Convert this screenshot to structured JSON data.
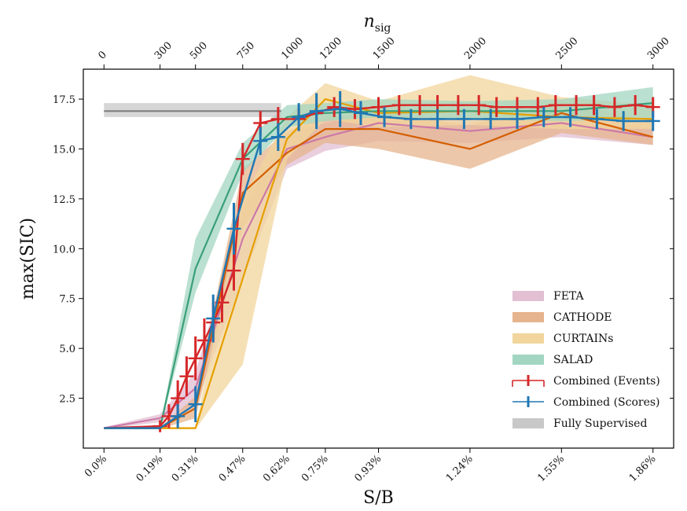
{
  "chart_data": {
    "type": "line",
    "xlabel": "S/B",
    "ylabel": "max(SIC)",
    "top_xlabel_main": "n",
    "top_xlabel_sub": "sig",
    "xlim": [
      -0.07,
      1.93
    ],
    "ylim": [
      0.0,
      19.0
    ],
    "x_ticks": [
      0.0,
      0.19,
      0.31,
      0.47,
      0.62,
      0.75,
      0.93,
      1.24,
      1.55,
      1.86
    ],
    "x_tick_labels": [
      "0.0%",
      "0.19%",
      "0.31%",
      "0.47%",
      "0.62%",
      "0.75%",
      "0.93%",
      "1.24%",
      "1.55%",
      "1.86%"
    ],
    "top_ticks": [
      0,
      300,
      500,
      750,
      1000,
      1200,
      1500,
      2000,
      2500,
      3000
    ],
    "top_tick_labels": [
      "0",
      "300",
      "500",
      "750",
      "1000",
      "1200",
      "1500",
      "2000",
      "2500",
      "3000"
    ],
    "y_ticks": [
      2.5,
      5.0,
      7.5,
      10.0,
      12.5,
      15.0,
      17.5
    ],
    "y_tick_labels": [
      "2.5",
      "5.0",
      "7.5",
      "10.0",
      "12.5",
      "15.0",
      "17.5"
    ],
    "legend_position": "lower-right",
    "series": [
      {
        "name": "FETA",
        "color": "#cc79a7",
        "band_color": "#e2bfd3",
        "x": [
          0.0,
          0.19,
          0.31,
          0.47,
          0.62,
          0.75,
          0.93,
          1.24,
          1.55,
          1.86
        ],
        "values": [
          1.0,
          1.5,
          3.0,
          10.5,
          15.0,
          15.6,
          16.3,
          15.9,
          16.3,
          15.6
        ],
        "lower": [
          0.95,
          1.3,
          2.2,
          8.5,
          14.0,
          14.9,
          15.4,
          15.3,
          15.6,
          15.2
        ],
        "upper": [
          1.05,
          1.7,
          3.8,
          12.0,
          15.8,
          16.3,
          16.9,
          16.4,
          16.9,
          16.0
        ]
      },
      {
        "name": "CATHODE",
        "color": "#d55e00",
        "band_color": "#e6b48e",
        "x": [
          0.0,
          0.19,
          0.31,
          0.47,
          0.62,
          0.75,
          0.93,
          1.24,
          1.55,
          1.86
        ],
        "values": [
          1.0,
          1.0,
          2.0,
          12.8,
          14.8,
          16.0,
          16.0,
          15.0,
          16.8,
          15.6
        ],
        "lower": [
          0.95,
          0.95,
          1.5,
          11.0,
          14.2,
          15.3,
          15.0,
          14.0,
          15.8,
          15.2
        ],
        "upper": [
          1.05,
          1.05,
          2.6,
          14.0,
          15.9,
          16.6,
          16.8,
          16.2,
          17.4,
          16.3
        ]
      },
      {
        "name": "CURTAINs",
        "color": "#e69f00",
        "band_color": "#f1d59c",
        "x": [
          0.0,
          0.19,
          0.31,
          0.47,
          0.62,
          0.75,
          0.93,
          1.24,
          1.55,
          1.86
        ],
        "values": [
          1.0,
          1.0,
          1.0,
          8.5,
          15.5,
          17.5,
          16.8,
          16.9,
          16.6,
          16.5
        ],
        "lower": [
          0.95,
          0.95,
          0.95,
          4.2,
          14.5,
          16.5,
          16.1,
          16.2,
          16.0,
          16.0
        ],
        "upper": [
          1.05,
          1.05,
          1.05,
          12.5,
          16.6,
          18.3,
          17.4,
          18.7,
          17.6,
          17.2
        ]
      },
      {
        "name": "SALAD",
        "color": "#3a9f7a",
        "band_color": "#a3d6c2",
        "x": [
          0.0,
          0.19,
          0.31,
          0.47,
          0.62,
          0.75,
          0.93,
          1.24,
          1.55,
          1.86
        ],
        "values": [
          1.0,
          1.0,
          9.0,
          14.5,
          16.6,
          16.8,
          16.9,
          16.9,
          16.9,
          17.3
        ],
        "lower": [
          0.95,
          0.95,
          7.8,
          13.8,
          16.1,
          16.4,
          16.6,
          16.5,
          16.4,
          16.5
        ],
        "upper": [
          1.05,
          1.05,
          10.5,
          15.3,
          17.2,
          17.3,
          17.5,
          17.4,
          17.5,
          18.1
        ]
      },
      {
        "name": "Combined (Events)",
        "color": "#d62728",
        "x": [
          0.0,
          0.19,
          0.22,
          0.25,
          0.28,
          0.31,
          0.34,
          0.37,
          0.4,
          0.44,
          0.47,
          0.53,
          0.59,
          0.66,
          0.72,
          0.78,
          0.85,
          0.93,
          1.0,
          1.07,
          1.13,
          1.2,
          1.27,
          1.33,
          1.4,
          1.47,
          1.53,
          1.6,
          1.66,
          1.73,
          1.8,
          1.86
        ],
        "values": [
          1.0,
          1.1,
          1.6,
          2.5,
          3.6,
          4.5,
          5.4,
          6.3,
          7.3,
          8.9,
          14.5,
          16.3,
          16.5,
          16.5,
          16.8,
          17.1,
          17.0,
          17.1,
          17.2,
          17.2,
          17.2,
          17.2,
          17.2,
          17.1,
          17.1,
          17.1,
          17.2,
          17.2,
          17.2,
          17.1,
          17.2,
          17.1
        ],
        "err": [
          0.0,
          0.3,
          0.6,
          0.9,
          1.0,
          1.1,
          1.1,
          1.0,
          1.0,
          1.0,
          0.8,
          0.6,
          0.6,
          0.6,
          0.6,
          0.5,
          0.5,
          0.5,
          0.5,
          0.5,
          0.5,
          0.5,
          0.5,
          0.5,
          0.5,
          0.5,
          0.5,
          0.5,
          0.5,
          0.5,
          0.5,
          0.5
        ]
      },
      {
        "name": "Combined (Scores)",
        "color": "#1f77b4",
        "x": [
          0.0,
          0.19,
          0.25,
          0.31,
          0.37,
          0.44,
          0.53,
          0.59,
          0.66,
          0.72,
          0.8,
          0.87,
          0.95,
          1.04,
          1.13,
          1.22,
          1.31,
          1.4,
          1.49,
          1.58,
          1.67,
          1.76,
          1.86
        ],
        "values": [
          1.0,
          1.0,
          1.6,
          2.2,
          6.5,
          11.0,
          15.4,
          15.6,
          16.6,
          16.9,
          17.0,
          16.8,
          16.6,
          16.5,
          16.5,
          16.5,
          16.5,
          16.5,
          16.6,
          16.6,
          16.5,
          16.4,
          16.4
        ],
        "err": [
          0.0,
          0.0,
          0.6,
          0.9,
          1.2,
          1.3,
          0.7,
          0.7,
          0.7,
          0.9,
          0.9,
          0.6,
          0.5,
          0.5,
          0.5,
          0.5,
          0.5,
          0.5,
          0.5,
          0.5,
          0.5,
          0.5,
          0.5
        ]
      },
      {
        "name": "Fully Supervised",
        "color": "#7f7f7f",
        "band_color": "#c8c8c8",
        "x": [
          0.0,
          0.6
        ],
        "values": [
          16.9,
          16.9
        ],
        "lower": [
          16.6,
          16.6
        ],
        "upper": [
          17.3,
          17.3
        ]
      }
    ]
  }
}
